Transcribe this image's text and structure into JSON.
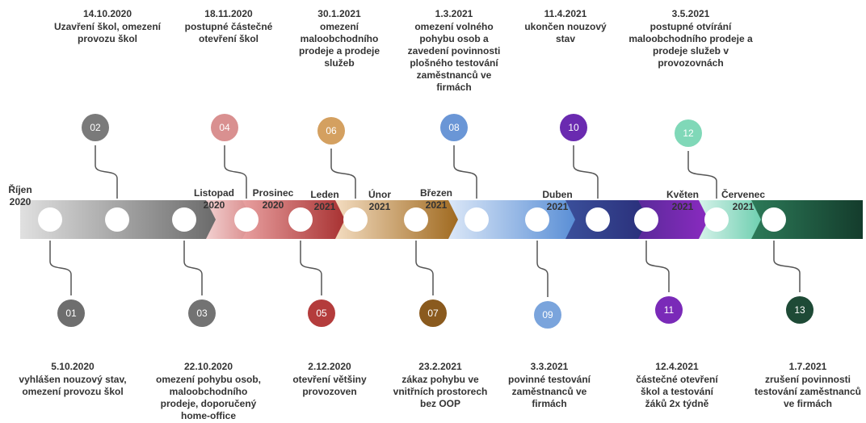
{
  "months": [
    {
      "name": "Říjen",
      "year": "2020"
    },
    {
      "name": "Listopad",
      "year": "2020"
    },
    {
      "name": "Prosinec",
      "year": "2020"
    },
    {
      "name": "Leden",
      "year": "2021"
    },
    {
      "name": "Únor",
      "year": "2021"
    },
    {
      "name": "Březen",
      "year": "2021"
    },
    {
      "name": "Duben",
      "year": "2021"
    },
    {
      "name": "Květen",
      "year": "2021"
    },
    {
      "name": "Červenec",
      "year": "2021"
    }
  ],
  "events": [
    {
      "number": "01",
      "date": "5.10.2020",
      "lines": [
        "vyhlášen nouzový stav,",
        "omezení provozu škol"
      ]
    },
    {
      "number": "02",
      "date": "14.10.2020",
      "lines": [
        "Uzavření škol, omezení",
        "provozu škol"
      ]
    },
    {
      "number": "03",
      "date": "22.10.2020",
      "lines": [
        "omezení pohybu osob,",
        "maloobchodního",
        "prodeje, doporučený",
        "home-office"
      ]
    },
    {
      "number": "04",
      "date": "18.11.2020",
      "lines": [
        "postupné částečné",
        "otevření škol"
      ]
    },
    {
      "number": "05",
      "date": "2.12.2020",
      "lines": [
        "otevření většiny",
        "provozoven"
      ]
    },
    {
      "number": "06",
      "date": "30.1.2021",
      "lines": [
        "omezení",
        "maloobchodního",
        "prodeje a prodeje",
        "služeb"
      ]
    },
    {
      "number": "07",
      "date": "23.2.2021",
      "lines": [
        "zákaz pohybu ve",
        "vnitřních prostorech",
        "bez OOP"
      ]
    },
    {
      "number": "08",
      "date": "1.3.2021",
      "lines": [
        "omezení volného",
        "pohybu osob a",
        "zavedení povinnosti",
        "plošného testování",
        "zaměstnanců ve",
        "firmách"
      ]
    },
    {
      "number": "09",
      "date": "3.3.2021",
      "lines": [
        "povinné testování",
        "zaměstnanců ve",
        "firmách"
      ]
    },
    {
      "number": "10",
      "date": "11.4.2021",
      "lines": [
        "ukončen nouzový",
        "stav"
      ]
    },
    {
      "number": "11",
      "date": "12.4.2021",
      "lines": [
        "částečné otevření",
        "škol a testování",
        "žáků 2x týdně"
      ]
    },
    {
      "number": "12",
      "date": "3.5.2021",
      "lines": [
        "postupné otvírání",
        "maloobchodního prodeje a",
        "prodeje služeb v",
        "provozovnách"
      ]
    },
    {
      "number": "13",
      "date": "1.7.2021",
      "lines": [
        "zrušení povinnosti",
        "testování zaměstnanců",
        "ve firmách"
      ]
    }
  ]
}
